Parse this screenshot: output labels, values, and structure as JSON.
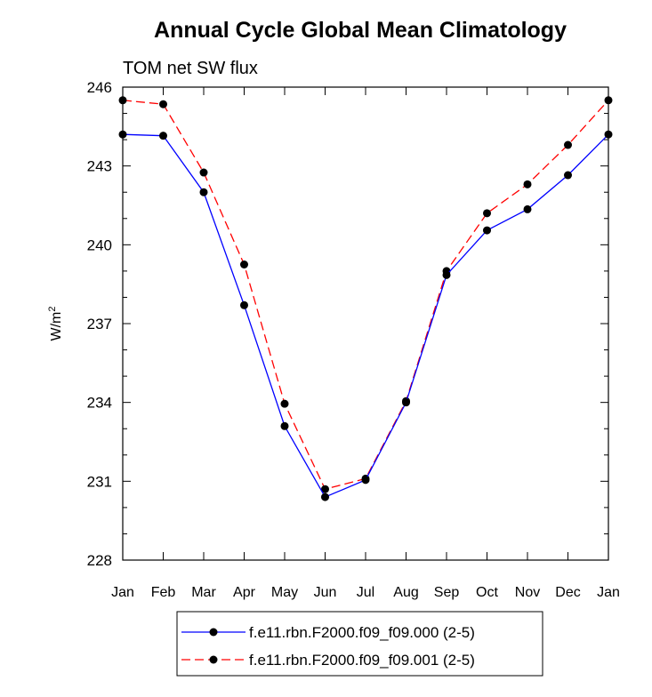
{
  "chart_data": {
    "type": "line",
    "title": "Annual Cycle Global Mean Climatology",
    "subtitle": "TOM net SW flux",
    "ylabel": "W/m",
    "ylabel_sup": "2",
    "xlabel": "",
    "ylim": [
      228,
      246
    ],
    "yticks": [
      "228",
      "231",
      "234",
      "237",
      "240",
      "243",
      "246"
    ],
    "categories": [
      "Jan",
      "Feb",
      "Mar",
      "Apr",
      "May",
      "Jun",
      "Jul",
      "Aug",
      "Sep",
      "Oct",
      "Nov",
      "Dec",
      "Jan"
    ],
    "series": [
      {
        "name": "f.e11.rbn.F2000.f09_f09.000 (2-5)",
        "color": "#0000ff",
        "dash": "solid",
        "values": [
          244.2,
          244.15,
          242.0,
          237.7,
          233.1,
          230.4,
          231.05,
          234.0,
          238.85,
          240.55,
          241.35,
          242.65,
          244.2
        ]
      },
      {
        "name": "f.e11.rbn.F2000.f09_f09.001 (2-5)",
        "color": "#ff0000",
        "dash": "dashed",
        "values": [
          245.5,
          245.35,
          242.75,
          239.25,
          233.95,
          230.7,
          231.1,
          234.05,
          239.0,
          241.2,
          242.3,
          243.8,
          245.5
        ]
      }
    ],
    "legend_position": "bottom"
  }
}
